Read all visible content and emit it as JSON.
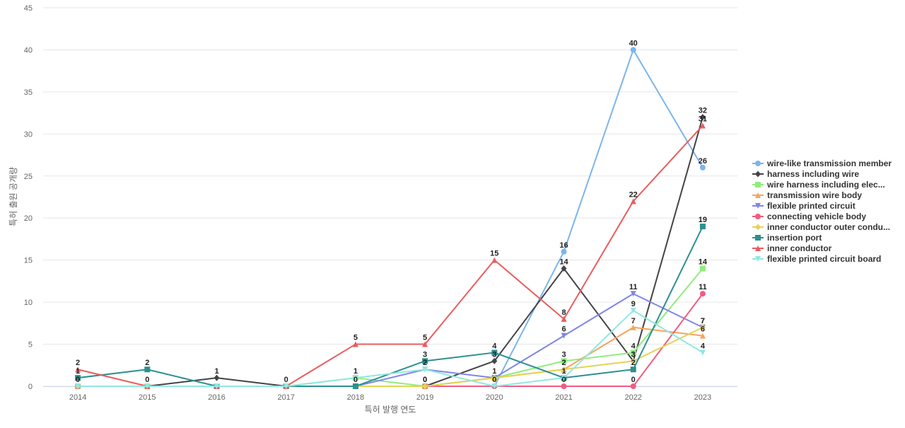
{
  "chart_data": {
    "type": "line",
    "title": "",
    "xlabel": "특허 발행 연도",
    "ylabel": "특허 출원 공개량",
    "ylim": [
      0,
      45
    ],
    "yticks": [
      0,
      5,
      10,
      15,
      20,
      25,
      30,
      35,
      40,
      45
    ],
    "grid": true,
    "legend_position": "right",
    "categories": [
      "2014",
      "2015",
      "2016",
      "2017",
      "2018",
      "2019",
      "2020",
      "2021",
      "2022",
      "2023"
    ],
    "series": [
      {
        "name": "wire-like transmission member",
        "color": "#7cb5ec",
        "marker": "circle",
        "values": [
          0,
          0,
          0,
          0,
          0,
          0,
          0,
          16,
          40,
          26
        ],
        "labeled": [
          false,
          false,
          false,
          false,
          false,
          false,
          false,
          true,
          true,
          true
        ]
      },
      {
        "name": "harness including wire",
        "color": "#434348",
        "marker": "diamond",
        "values": [
          0,
          0,
          1,
          0,
          0,
          0,
          3,
          14,
          3,
          32
        ],
        "labeled": [
          false,
          true,
          true,
          true,
          false,
          true,
          true,
          true,
          true,
          true
        ]
      },
      {
        "name": "wire harness including elec...",
        "color": "#90ed7d",
        "marker": "square",
        "values": [
          0,
          0,
          0,
          0,
          1,
          0,
          1,
          3,
          4,
          14
        ],
        "labeled": [
          true,
          false,
          false,
          false,
          true,
          true,
          true,
          true,
          true,
          true
        ]
      },
      {
        "name": "transmission wire body",
        "color": "#f7a35c",
        "marker": "triangle",
        "values": [
          0,
          0,
          0,
          0,
          0,
          0,
          1,
          2,
          7,
          6
        ],
        "labeled": [
          false,
          false,
          false,
          false,
          false,
          false,
          false,
          true,
          true,
          true
        ]
      },
      {
        "name": "flexible printed circuit",
        "color": "#8085e9",
        "marker": "triangle-down",
        "values": [
          0,
          0,
          0,
          0,
          0,
          2,
          1,
          6,
          11,
          7
        ],
        "labeled": [
          false,
          false,
          false,
          false,
          false,
          true,
          false,
          true,
          true,
          true
        ]
      },
      {
        "name": "connecting vehicle body",
        "color": "#f15c80",
        "marker": "circle",
        "values": [
          0,
          0,
          0,
          0,
          0,
          0,
          0,
          0,
          0,
          11
        ],
        "labeled": [
          false,
          false,
          false,
          false,
          false,
          false,
          true,
          true,
          true,
          true
        ]
      },
      {
        "name": "inner conductor outer condu...",
        "color": "#e4d354",
        "marker": "diamond",
        "values": [
          0,
          0,
          0,
          0,
          0,
          0,
          1,
          2,
          3,
          7
        ],
        "labeled": [
          false,
          false,
          false,
          false,
          false,
          false,
          false,
          false,
          true,
          true
        ]
      },
      {
        "name": "insertion port",
        "color": "#2b908f",
        "marker": "square",
        "values": [
          1,
          2,
          0,
          0,
          0,
          3,
          4,
          1,
          2,
          19
        ],
        "labeled": [
          true,
          true,
          false,
          false,
          true,
          true,
          true,
          true,
          true,
          true
        ]
      },
      {
        "name": "inner conductor",
        "color": "#e85d5d",
        "marker": "triangle",
        "values": [
          2,
          0,
          0,
          0,
          5,
          5,
          15,
          8,
          22,
          31
        ],
        "labeled": [
          true,
          false,
          false,
          false,
          true,
          true,
          true,
          true,
          true,
          true
        ]
      },
      {
        "name": "flexible printed circuit board",
        "color": "#91e8e1",
        "marker": "triangle-down",
        "values": [
          0,
          0,
          0,
          0,
          1,
          2,
          0,
          1,
          9,
          4
        ],
        "labeled": [
          false,
          false,
          false,
          false,
          false,
          false,
          false,
          false,
          true,
          true
        ]
      }
    ]
  }
}
